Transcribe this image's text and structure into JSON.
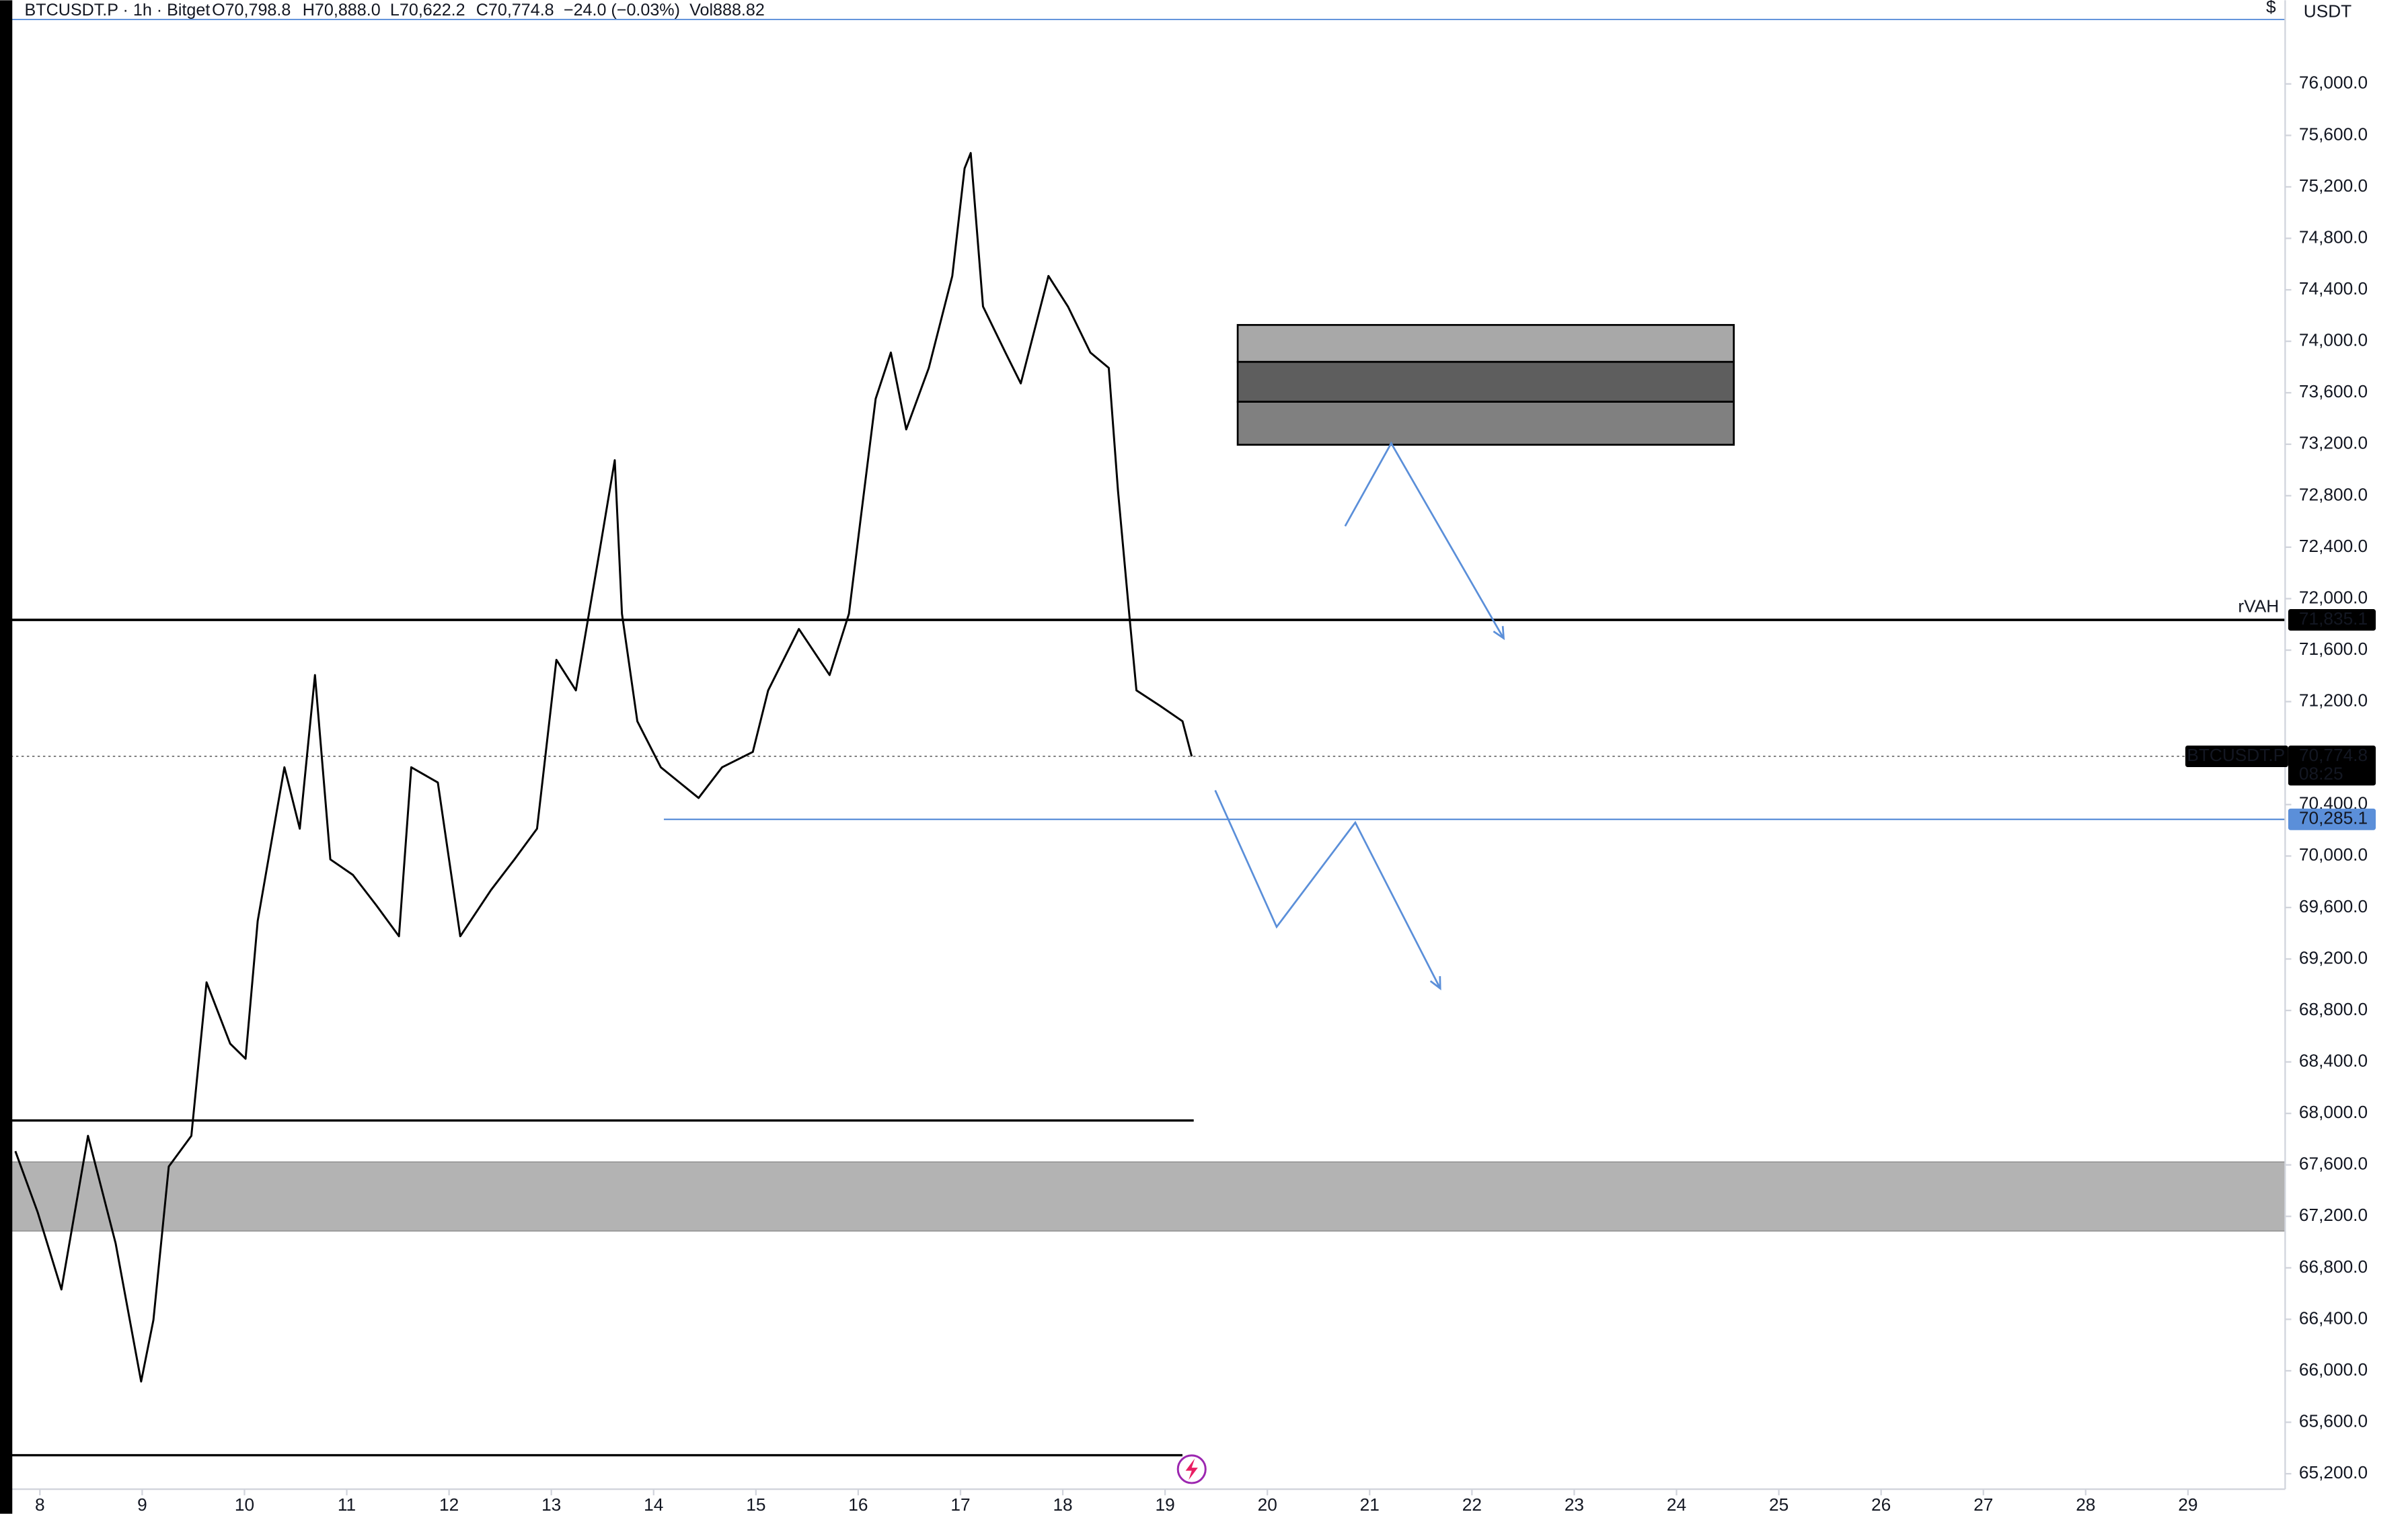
{
  "chart_data": {
    "type": "line",
    "header": {
      "symbol": "BTCUSDT.P · 1h · Bitget",
      "open": "O70,798.8",
      "high": "H70,888.0",
      "low": "L70,622.2",
      "close": "C70,774.8",
      "change": "−24.0 (−0.03%)",
      "volume": "Vol888.82"
    },
    "currency": "USDT",
    "currency_symbol": "$",
    "x": [
      7.76,
      7.98,
      8.21,
      8.47,
      8.74,
      8.99,
      9.11,
      9.26,
      9.48,
      9.63,
      9.86,
      10.01,
      10.13,
      10.39,
      10.54,
      10.69,
      10.84,
      11.06,
      11.29,
      11.51,
      11.63,
      11.89,
      12.11,
      12.41,
      12.64,
      12.86,
      13.05,
      13.24,
      13.47,
      13.62,
      13.69,
      13.84,
      14.07,
      14.44,
      14.67,
      14.97,
      15.12,
      15.42,
      15.72,
      15.91,
      16.02,
      16.17,
      16.32,
      16.47,
      16.69,
      16.92,
      17.04,
      17.1,
      17.22,
      17.44,
      17.59,
      17.86,
      18.05,
      18.27,
      18.45,
      18.54,
      18.65,
      18.72,
      18.95,
      19.17,
      19.26
    ],
    "series": [
      {
        "name": "BTCUSDT.P",
        "color": "#000000",
        "values": [
          67706,
          67229,
          66632,
          67826,
          66990,
          65916,
          66394,
          67587,
          67826,
          69019,
          68542,
          68424,
          69496,
          70690,
          70213,
          71406,
          69974,
          69854,
          69616,
          69377,
          70690,
          70571,
          69377,
          69735,
          69974,
          70213,
          71525,
          71287,
          72361,
          73077,
          71883,
          71048,
          70690,
          70451,
          70690,
          70809,
          71287,
          71764,
          71406,
          71883,
          72599,
          73554,
          73912,
          73315,
          73793,
          74508,
          75344,
          75463,
          74270,
          73912,
          73673,
          74508,
          74270,
          73912,
          73793,
          72838,
          71883,
          71287,
          71168,
          71048,
          70774.8
        ]
      }
    ],
    "xlim": [
      7.61,
      29.95
    ],
    "xticks": [
      8,
      9,
      10,
      11,
      12,
      13,
      14,
      15,
      16,
      17,
      18,
      19,
      20,
      21,
      22,
      23,
      24,
      25,
      26,
      27,
      28,
      29
    ],
    "ylim": [
      65080,
      76650
    ],
    "yticks": [
      {
        "value": 65200,
        "label": "65,200.0"
      },
      {
        "value": 65600,
        "label": "65,600.0"
      },
      {
        "value": 66000,
        "label": "66,000.0"
      },
      {
        "value": 66400,
        "label": "66,400.0"
      },
      {
        "value": 66800,
        "label": "66,800.0"
      },
      {
        "value": 67200,
        "label": "67,200.0"
      },
      {
        "value": 67600,
        "label": "67,600.0"
      },
      {
        "value": 68000,
        "label": "68,000.0"
      },
      {
        "value": 68400,
        "label": "68,400.0"
      },
      {
        "value": 68800,
        "label": "68,800.0"
      },
      {
        "value": 69200,
        "label": "69,200.0"
      },
      {
        "value": 69600,
        "label": "69,600.0"
      },
      {
        "value": 70000,
        "label": "70,000.0"
      },
      {
        "value": 70400,
        "label": "70,400.0"
      },
      {
        "value": 71200,
        "label": "71,200.0"
      },
      {
        "value": 71600,
        "label": "71,600.0"
      },
      {
        "value": 72000,
        "label": "72,000.0"
      },
      {
        "value": 72400,
        "label": "72,400.0"
      },
      {
        "value": 72800,
        "label": "72,800.0"
      },
      {
        "value": 73200,
        "label": "73,200.0"
      },
      {
        "value": 73600,
        "label": "73,600.0"
      },
      {
        "value": 74000,
        "label": "74,000.0"
      },
      {
        "value": 74400,
        "label": "74,400.0"
      },
      {
        "value": 74800,
        "label": "74,800.0"
      },
      {
        "value": 75200,
        "label": "75,200.0"
      },
      {
        "value": 75600,
        "label": "75,600.0"
      },
      {
        "value": 76000,
        "label": "76,000.0"
      }
    ],
    "last_price": {
      "value": 70774.8,
      "label": "70,774.8",
      "countdown": "08:25"
    },
    "levels": [
      {
        "name": "rVAH",
        "value": 71835.1,
        "label": "71,835.1",
        "color": "#000000"
      },
      {
        "value": 70285.1,
        "label": "70,285.1",
        "color": "#5b8fd9",
        "x_start": 14.1
      }
    ],
    "lines": [
      {
        "value": 76501,
        "color": "#5b8fd9"
      },
      {
        "value": 67945,
        "color": "#000000",
        "x": [
          7.61,
          19.28
        ]
      },
      {
        "value": 65344,
        "color": "#000000",
        "x": [
          7.61,
          19.17
        ]
      }
    ],
    "zone": {
      "low": 67086,
      "high": 67623,
      "color": "#b3b3b3"
    },
    "box": {
      "x": [
        19.71,
        24.56
      ],
      "bands": [
        {
          "low": 73840,
          "high": 74127,
          "color": "#a8a8a8"
        },
        {
          "low": 73530,
          "high": 73840,
          "color": "#5e5e5e"
        },
        {
          "low": 73196,
          "high": 73530,
          "color": "#808080"
        }
      ]
    },
    "paths": [
      {
        "color": "#5b8fd9",
        "x": [
          20.76,
          21.21,
          22.31
        ],
        "y": [
          72563,
          73208,
          71692
        ]
      },
      {
        "color": "#5b8fd9",
        "x": [
          19.49,
          20.09,
          20.86,
          21.69
        ],
        "y": [
          70511,
          69449,
          70260,
          68971
        ]
      }
    ]
  }
}
